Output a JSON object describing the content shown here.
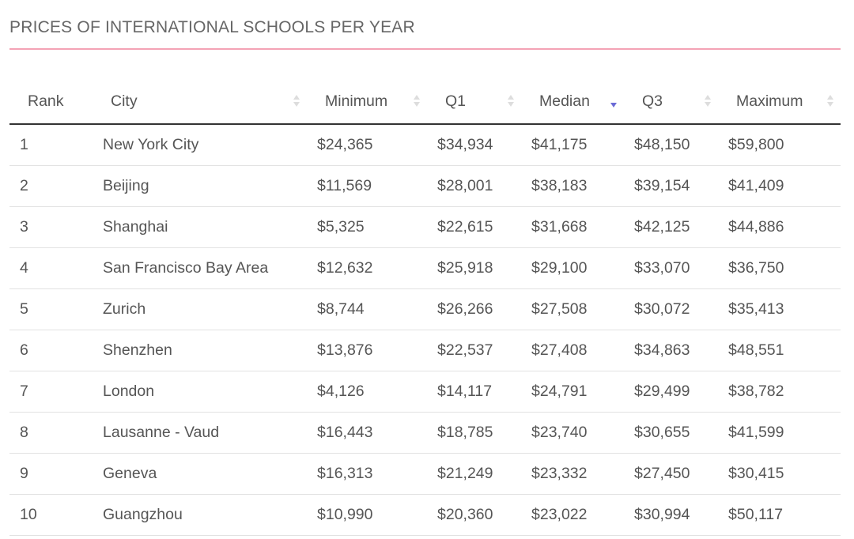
{
  "title": "PRICES OF INTERNATIONAL SCHOOLS PER YEAR",
  "accent_color": "#f4a3b5",
  "sort_active_color": "#6b6bd6",
  "table": {
    "columns": [
      {
        "label": "Rank",
        "sortable": false
      },
      {
        "label": "City",
        "sortable": true,
        "sort": "none"
      },
      {
        "label": "Minimum",
        "sortable": true,
        "sort": "none"
      },
      {
        "label": "Q1",
        "sortable": true,
        "sort": "none"
      },
      {
        "label": "Median",
        "sortable": true,
        "sort": "descending"
      },
      {
        "label": "Q3",
        "sortable": true,
        "sort": "none"
      },
      {
        "label": "Maximum",
        "sortable": true,
        "sort": "none"
      }
    ],
    "rows": [
      [
        "1",
        "New York City",
        "$24,365",
        "$34,934",
        "$41,175",
        "$48,150",
        "$59,800"
      ],
      [
        "2",
        "Beijing",
        "$11,569",
        "$28,001",
        "$38,183",
        "$39,154",
        "$41,409"
      ],
      [
        "3",
        "Shanghai",
        "$5,325",
        "$22,615",
        "$31,668",
        "$42,125",
        "$44,886"
      ],
      [
        "4",
        "San Francisco Bay Area",
        "$12,632",
        "$25,918",
        "$29,100",
        "$33,070",
        "$36,750"
      ],
      [
        "5",
        "Zurich",
        "$8,744",
        "$26,266",
        "$27,508",
        "$30,072",
        "$35,413"
      ],
      [
        "6",
        "Shenzhen",
        "$13,876",
        "$22,537",
        "$27,408",
        "$34,863",
        "$48,551"
      ],
      [
        "7",
        "London",
        "$4,126",
        "$14,117",
        "$24,791",
        "$29,499",
        "$38,782"
      ],
      [
        "8",
        "Lausanne - Vaud",
        "$16,443",
        "$18,785",
        "$23,740",
        "$30,655",
        "$41,599"
      ],
      [
        "9",
        "Geneva",
        "$16,313",
        "$21,249",
        "$23,332",
        "$27,450",
        "$30,415"
      ],
      [
        "10",
        "Guangzhou",
        "$10,990",
        "$20,360",
        "$23,022",
        "$30,994",
        "$50,117"
      ]
    ]
  }
}
